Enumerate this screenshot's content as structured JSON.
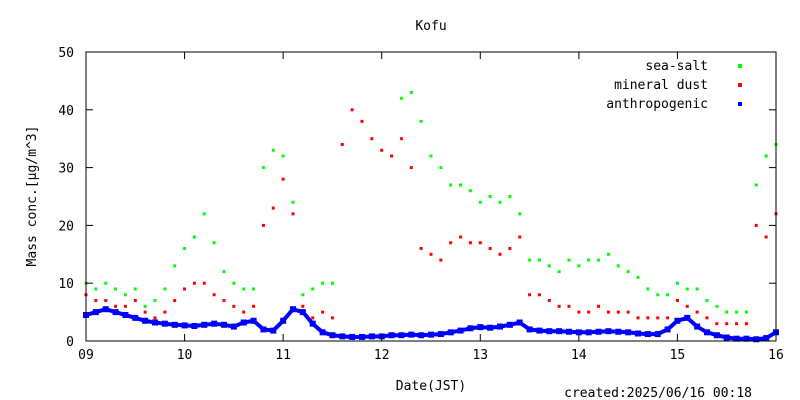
{
  "chart_data": {
    "type": "scatter",
    "title": "Kofu",
    "xlabel": "Date(JST)",
    "ylabel_main": "Mass conc.[",
    "ylabel_unit": "μg/m^3]",
    "xlim": [
      9,
      16
    ],
    "ylim": [
      0,
      50
    ],
    "x_ticks": [
      {
        "v": 9,
        "label": "09"
      },
      {
        "v": 10,
        "label": "10"
      },
      {
        "v": 11,
        "label": "11"
      },
      {
        "v": 12,
        "label": "12"
      },
      {
        "v": 13,
        "label": "13"
      },
      {
        "v": 14,
        "label": "14"
      },
      {
        "v": 15,
        "label": "15"
      },
      {
        "v": 16,
        "label": "16"
      }
    ],
    "y_ticks": [
      {
        "v": 0,
        "label": "0"
      },
      {
        "v": 10,
        "label": "10"
      },
      {
        "v": 20,
        "label": "20"
      },
      {
        "v": 30,
        "label": "30"
      },
      {
        "v": 40,
        "label": "40"
      },
      {
        "v": 50,
        "label": "50"
      }
    ],
    "legend_position": "top-right",
    "grid": false,
    "created": "created:2025/06/16 00:18",
    "series": [
      {
        "name": "sea-salt",
        "color": "#00ff00",
        "x": [
          9.0,
          9.1,
          9.2,
          9.3,
          9.4,
          9.5,
          9.6,
          9.7,
          9.8,
          9.9,
          10.0,
          10.1,
          10.2,
          10.3,
          10.4,
          10.5,
          10.6,
          10.7,
          10.8,
          10.9,
          11.0,
          11.1,
          11.2,
          11.3,
          11.4,
          11.5,
          11.6,
          11.7,
          11.8,
          11.9,
          12.0,
          12.1,
          12.2,
          12.3,
          12.4,
          12.5,
          12.6,
          12.7,
          12.8,
          12.9,
          13.0,
          13.1,
          13.2,
          13.3,
          13.4,
          13.5,
          13.6,
          13.7,
          13.8,
          13.9,
          14.0,
          14.1,
          14.2,
          14.3,
          14.4,
          14.5,
          14.6,
          14.7,
          14.8,
          14.9,
          15.0,
          15.1,
          15.2,
          15.3,
          15.4,
          15.5,
          15.6,
          15.7,
          15.8,
          15.9,
          16.0
        ],
        "y": [
          10,
          9,
          10,
          9,
          8,
          9,
          6,
          7,
          9,
          13,
          16,
          18,
          22,
          17,
          12,
          10,
          9,
          9,
          30,
          33,
          32,
          24,
          8,
          9,
          10,
          10,
          null,
          null,
          null,
          null,
          null,
          null,
          42,
          43,
          38,
          32,
          30,
          27,
          27,
          26,
          24,
          25,
          24,
          25,
          22,
          14,
          14,
          13,
          12,
          14,
          13,
          14,
          14,
          15,
          13,
          12,
          11,
          9,
          8,
          8,
          10,
          9,
          9,
          7,
          6,
          5,
          5,
          5,
          27,
          32,
          34
        ]
      },
      {
        "name": "mineral dust",
        "color": "#ff0000",
        "x": [
          9.0,
          9.1,
          9.2,
          9.3,
          9.4,
          9.5,
          9.6,
          9.7,
          9.8,
          9.9,
          10.0,
          10.1,
          10.2,
          10.3,
          10.4,
          10.5,
          10.6,
          10.7,
          10.8,
          10.9,
          11.0,
          11.1,
          11.2,
          11.3,
          11.4,
          11.5,
          11.6,
          11.7,
          11.8,
          11.9,
          12.0,
          12.1,
          12.2,
          12.3,
          12.4,
          12.5,
          12.6,
          12.7,
          12.8,
          12.9,
          13.0,
          13.1,
          13.2,
          13.3,
          13.4,
          13.5,
          13.6,
          13.7,
          13.8,
          13.9,
          14.0,
          14.1,
          14.2,
          14.3,
          14.4,
          14.5,
          14.6,
          14.7,
          14.8,
          14.9,
          15.0,
          15.1,
          15.2,
          15.3,
          15.4,
          15.5,
          15.6,
          15.7,
          15.8,
          15.9,
          16.0
        ],
        "y": [
          8,
          7,
          7,
          6,
          6,
          7,
          5,
          4,
          5,
          7,
          9,
          10,
          10,
          8,
          7,
          6,
          5,
          6,
          20,
          23,
          28,
          22,
          6,
          4,
          5,
          4,
          34,
          40,
          38,
          35,
          33,
          32,
          35,
          30,
          16,
          15,
          14,
          17,
          18,
          17,
          17,
          16,
          15,
          16,
          18,
          8,
          8,
          7,
          6,
          6,
          5,
          5,
          6,
          5,
          5,
          5,
          4,
          4,
          4,
          4,
          7,
          6,
          5,
          4,
          3,
          3,
          3,
          3,
          20,
          18,
          22
        ]
      },
      {
        "name": "anthropogenic",
        "color": "#0000ff",
        "x": [
          9.0,
          9.1,
          9.2,
          9.3,
          9.4,
          9.5,
          9.6,
          9.7,
          9.8,
          9.9,
          10.0,
          10.1,
          10.2,
          10.3,
          10.4,
          10.5,
          10.6,
          10.7,
          10.8,
          10.9,
          11.0,
          11.1,
          11.2,
          11.3,
          11.4,
          11.5,
          11.6,
          11.7,
          11.8,
          11.9,
          12.0,
          12.1,
          12.2,
          12.3,
          12.4,
          12.5,
          12.6,
          12.7,
          12.8,
          12.9,
          13.0,
          13.1,
          13.2,
          13.3,
          13.4,
          13.5,
          13.6,
          13.7,
          13.8,
          13.9,
          14.0,
          14.1,
          14.2,
          14.3,
          14.4,
          14.5,
          14.6,
          14.7,
          14.8,
          14.9,
          15.0,
          15.1,
          15.2,
          15.3,
          15.4,
          15.5,
          15.6,
          15.7,
          15.8,
          15.9,
          16.0
        ],
        "y": [
          4.5,
          5.0,
          5.5,
          5.0,
          4.5,
          4.0,
          3.5,
          3.2,
          3.0,
          2.8,
          2.7,
          2.6,
          2.8,
          3.0,
          2.8,
          2.5,
          3.2,
          3.5,
          2.0,
          1.8,
          3.5,
          5.5,
          5.0,
          3.0,
          1.5,
          1.0,
          0.8,
          0.7,
          0.7,
          0.8,
          0.8,
          1.0,
          1.0,
          1.1,
          1.0,
          1.1,
          1.2,
          1.5,
          1.8,
          2.2,
          2.4,
          2.3,
          2.5,
          2.8,
          3.2,
          2.0,
          1.8,
          1.7,
          1.7,
          1.6,
          1.5,
          1.5,
          1.6,
          1.7,
          1.6,
          1.5,
          1.3,
          1.2,
          1.2,
          2.0,
          3.5,
          4.0,
          2.5,
          1.5,
          1.0,
          0.6,
          0.4,
          0.4,
          0.3,
          0.5,
          1.5
        ]
      }
    ]
  }
}
